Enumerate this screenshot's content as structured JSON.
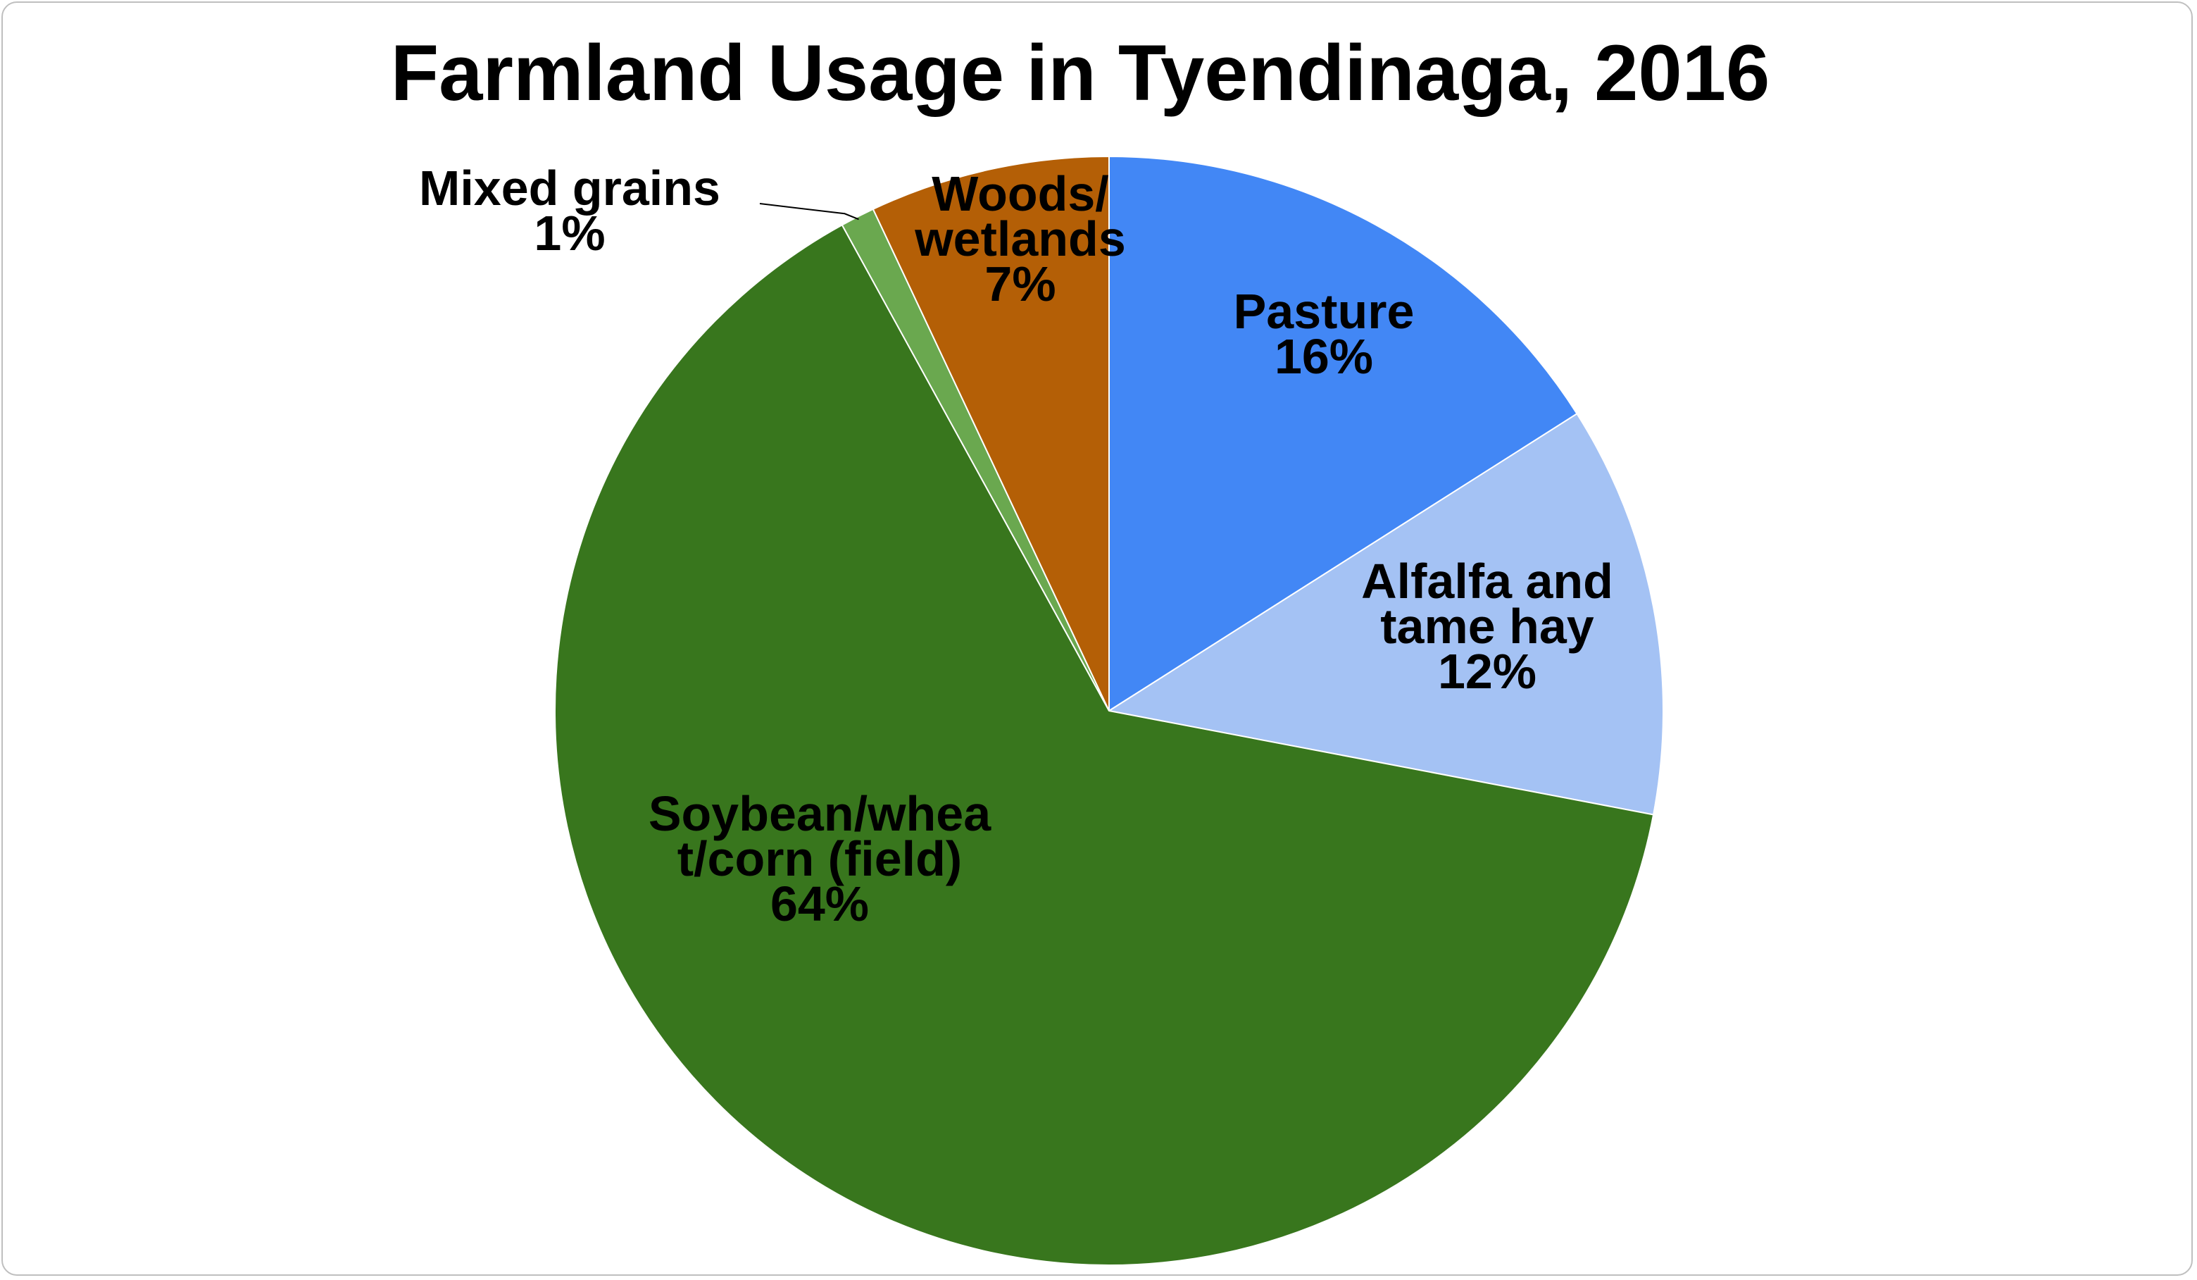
{
  "chart_data": {
    "type": "pie",
    "title": "Farmland Usage in Tyendinaga, 2016",
    "slices": [
      {
        "name": "Pasture",
        "label_lines": [
          "Pasture",
          "16%"
        ],
        "value": 16,
        "color": "#4287f5"
      },
      {
        "name": "Alfalfa and tame hay",
        "label_lines": [
          "Alfalfa and",
          "tame hay",
          "12%"
        ],
        "value": 12,
        "color": "#a4c2f4"
      },
      {
        "name": "Soybean/wheat/corn (field)",
        "label_lines": [
          "Soybean/whea",
          "t/corn (field)",
          "64%"
        ],
        "value": 64,
        "color": "#38761d"
      },
      {
        "name": "Mixed grains",
        "label_lines": [
          "Mixed grains",
          "1%"
        ],
        "value": 1,
        "color": "#6aa84f"
      },
      {
        "name": "Woods/ wetlands",
        "label_lines": [
          "Woods/",
          "wetlands",
          "7%"
        ],
        "value": 7,
        "color": "#b45f06"
      }
    ],
    "start_angle": "12 o'clock",
    "direction": "clockwise",
    "legend": "none",
    "data_labels": "category name and percentage"
  }
}
